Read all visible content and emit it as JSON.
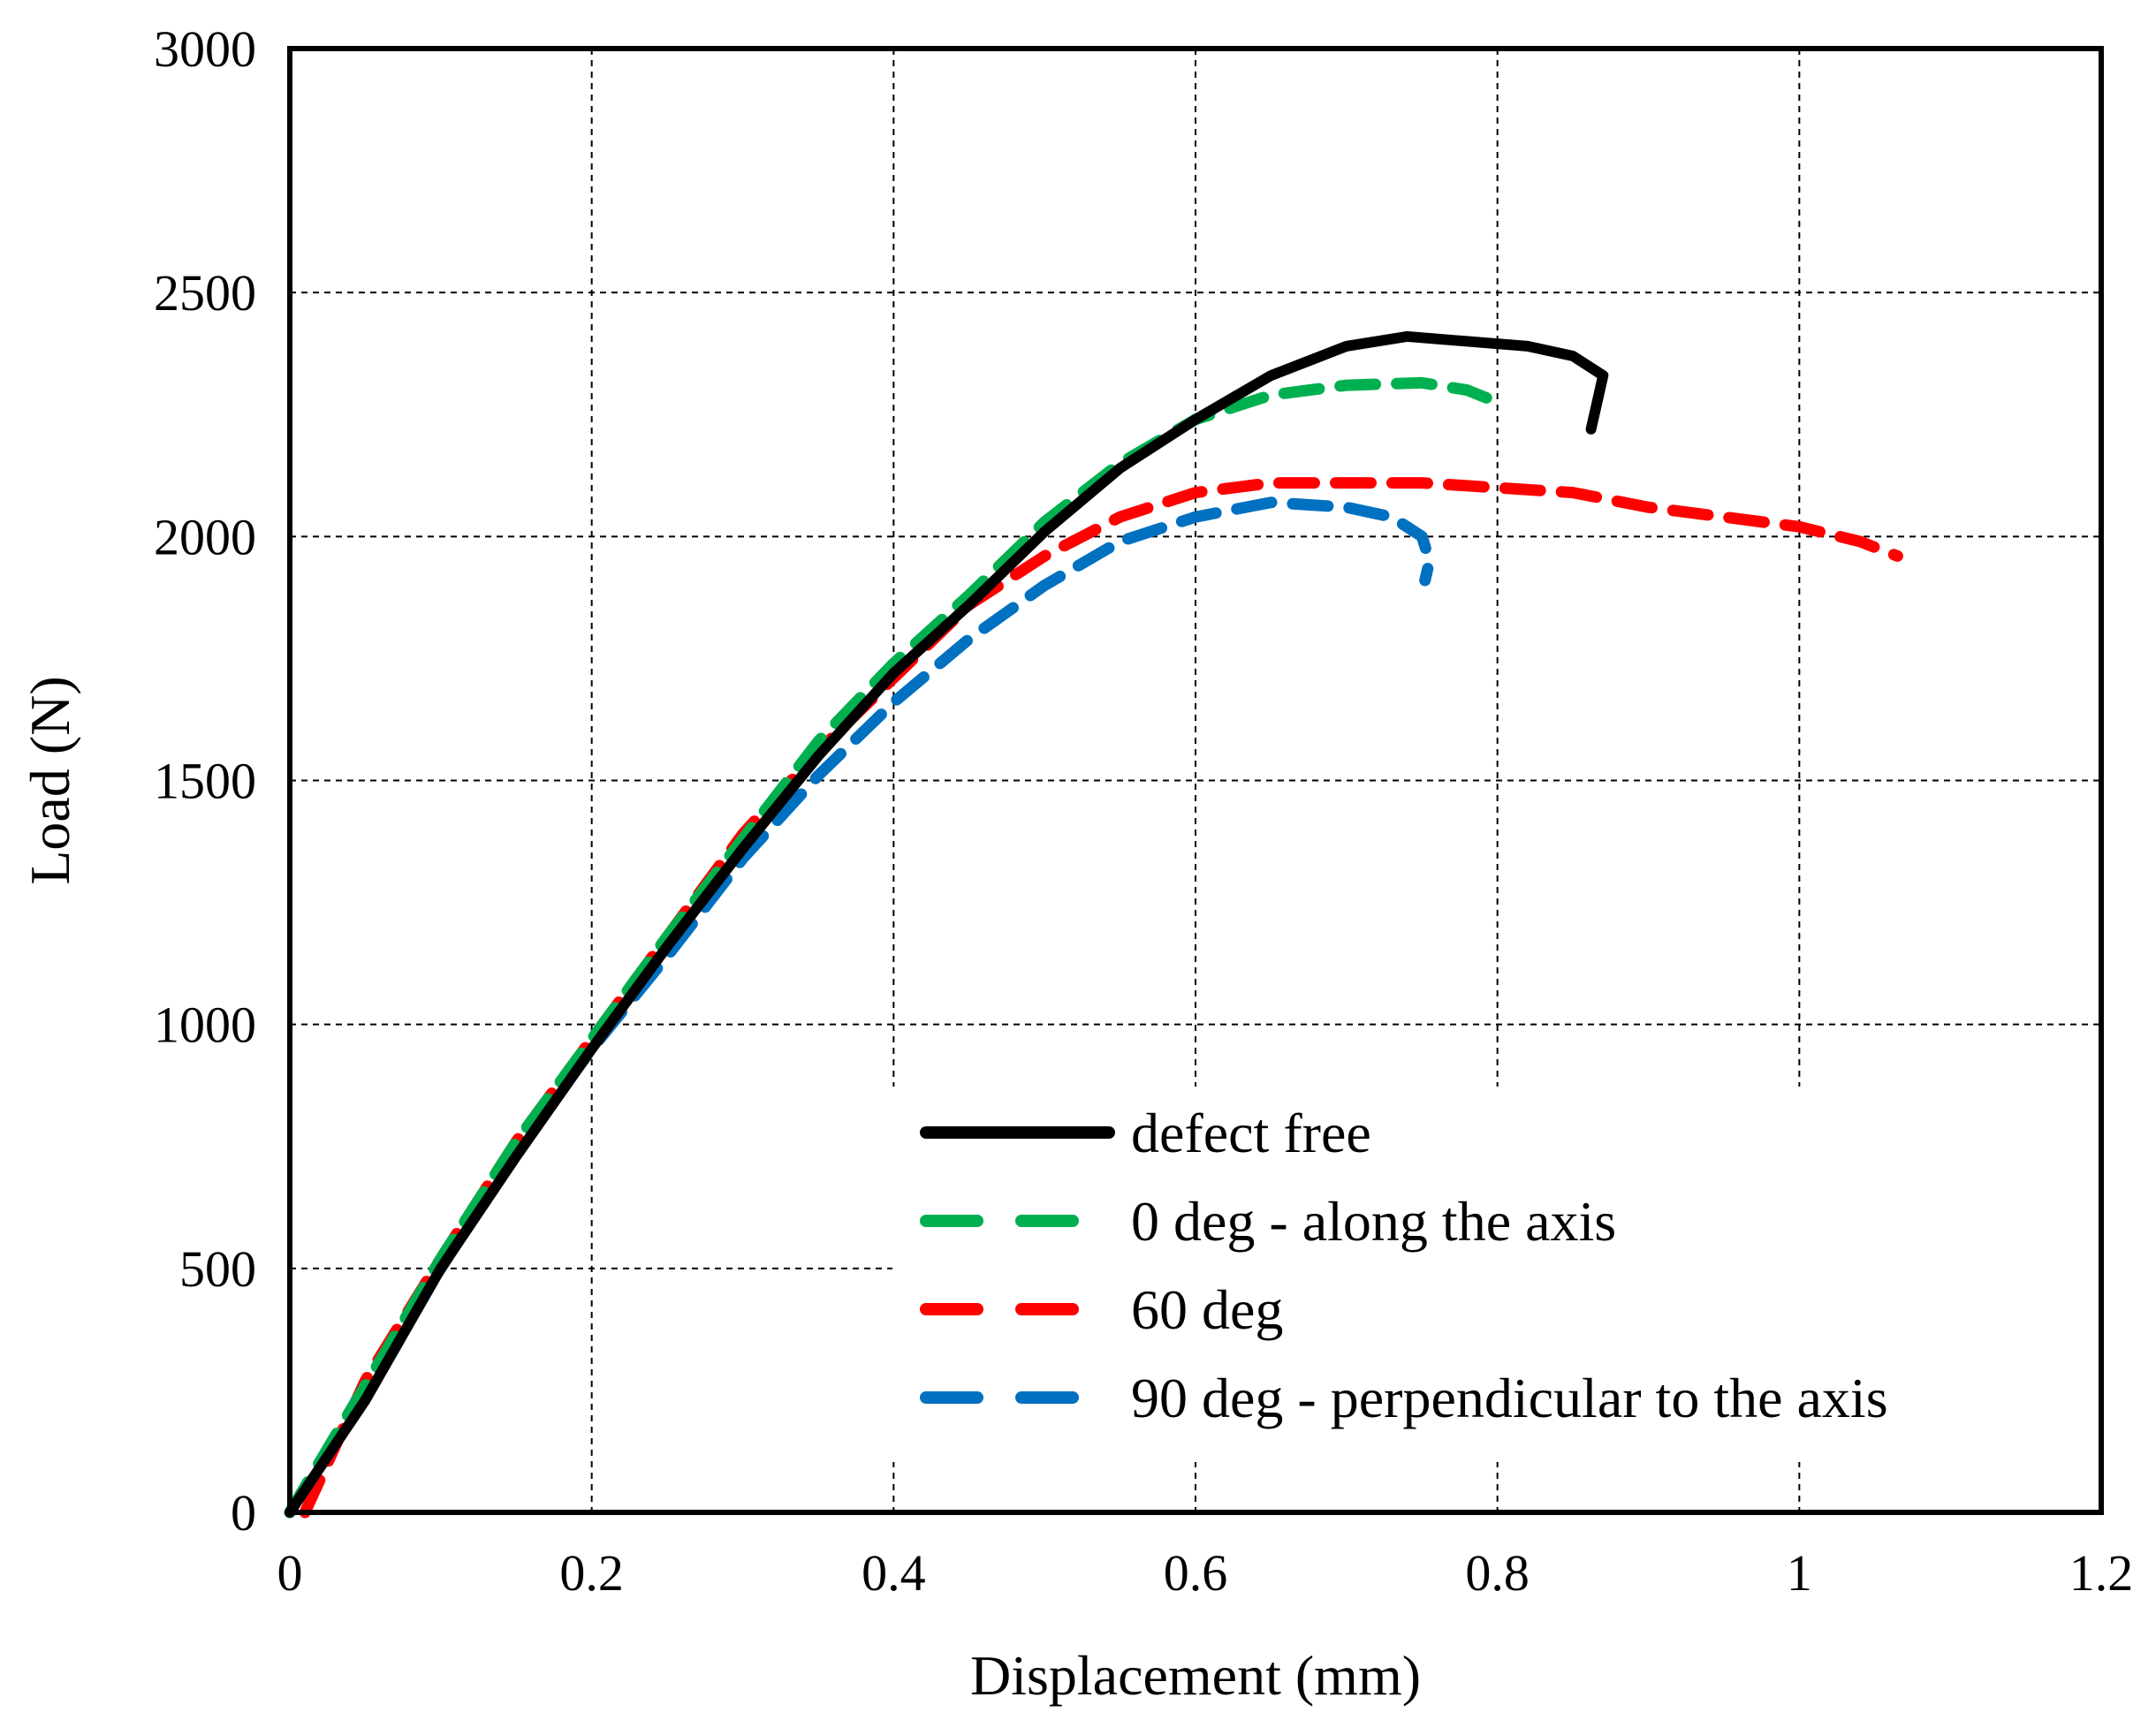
{
  "chart_data": {
    "type": "line",
    "title": "",
    "xlabel": "Displacement (mm)",
    "ylabel": "Load (N)",
    "xlim": [
      0,
      1.2
    ],
    "ylim": [
      0,
      3000
    ],
    "xticks": [
      0,
      0.2,
      0.4,
      0.6,
      0.8,
      1,
      1.2
    ],
    "xtick_labels": [
      "0",
      "0.2",
      "0.4",
      "0.6",
      "0.8",
      "1",
      "1.2"
    ],
    "yticks": [
      0,
      500,
      1000,
      1500,
      2000,
      2500,
      3000
    ],
    "ytick_labels": [
      "0",
      "500",
      "1000",
      "1500",
      "2000",
      "2500",
      "3000"
    ],
    "grid": true,
    "legend_position": "bottom-right",
    "series": [
      {
        "name": "defect free",
        "color": "#000000",
        "style": "solid",
        "points": [
          [
            0.0,
            0
          ],
          [
            0.05,
            230
          ],
          [
            0.1,
            500
          ],
          [
            0.15,
            730
          ],
          [
            0.2,
            950
          ],
          [
            0.25,
            1160
          ],
          [
            0.3,
            1360
          ],
          [
            0.35,
            1550
          ],
          [
            0.4,
            1720
          ],
          [
            0.45,
            1860
          ],
          [
            0.5,
            2010
          ],
          [
            0.55,
            2140
          ],
          [
            0.6,
            2240
          ],
          [
            0.65,
            2330
          ],
          [
            0.7,
            2390
          ],
          [
            0.74,
            2410
          ],
          [
            0.78,
            2400
          ],
          [
            0.82,
            2390
          ],
          [
            0.85,
            2370
          ],
          [
            0.87,
            2330
          ],
          [
            0.862,
            2220
          ]
        ]
      },
      {
        "name": "0 deg - along the axis",
        "color": "#00b050",
        "style": "dashed",
        "points": [
          [
            0.0,
            0
          ],
          [
            0.05,
            260
          ],
          [
            0.1,
            520
          ],
          [
            0.15,
            760
          ],
          [
            0.2,
            970
          ],
          [
            0.25,
            1180
          ],
          [
            0.3,
            1380
          ],
          [
            0.35,
            1580
          ],
          [
            0.4,
            1740
          ],
          [
            0.45,
            1880
          ],
          [
            0.5,
            2030
          ],
          [
            0.55,
            2150
          ],
          [
            0.6,
            2240
          ],
          [
            0.65,
            2290
          ],
          [
            0.7,
            2310
          ],
          [
            0.75,
            2315
          ],
          [
            0.78,
            2300
          ],
          [
            0.8,
            2275
          ]
        ]
      },
      {
        "name": "60 deg",
        "color": "#ff0000",
        "style": "dashed",
        "points": [
          [
            0.01,
            0
          ],
          [
            0.05,
            270
          ],
          [
            0.1,
            520
          ],
          [
            0.15,
            760
          ],
          [
            0.2,
            970
          ],
          [
            0.25,
            1180
          ],
          [
            0.3,
            1390
          ],
          [
            0.35,
            1560
          ],
          [
            0.4,
            1710
          ],
          [
            0.45,
            1860
          ],
          [
            0.5,
            1960
          ],
          [
            0.55,
            2040
          ],
          [
            0.6,
            2090
          ],
          [
            0.65,
            2110
          ],
          [
            0.7,
            2110
          ],
          [
            0.75,
            2110
          ],
          [
            0.8,
            2100
          ],
          [
            0.85,
            2090
          ],
          [
            0.9,
            2060
          ],
          [
            0.95,
            2040
          ],
          [
            1.0,
            2020
          ],
          [
            1.04,
            1990
          ],
          [
            1.065,
            1960
          ]
        ]
      },
      {
        "name": "90 deg - perpendicular to the axis",
        "color": "#0070c0",
        "style": "dashed",
        "points": [
          [
            0.0,
            0
          ],
          [
            0.05,
            260
          ],
          [
            0.1,
            500
          ],
          [
            0.15,
            740
          ],
          [
            0.2,
            950
          ],
          [
            0.25,
            1140
          ],
          [
            0.3,
            1340
          ],
          [
            0.35,
            1510
          ],
          [
            0.4,
            1660
          ],
          [
            0.45,
            1790
          ],
          [
            0.5,
            1900
          ],
          [
            0.55,
            1990
          ],
          [
            0.6,
            2040
          ],
          [
            0.65,
            2070
          ],
          [
            0.7,
            2060
          ],
          [
            0.73,
            2040
          ],
          [
            0.75,
            2000
          ],
          [
            0.755,
            1950
          ],
          [
            0.752,
            1910
          ]
        ]
      }
    ]
  }
}
